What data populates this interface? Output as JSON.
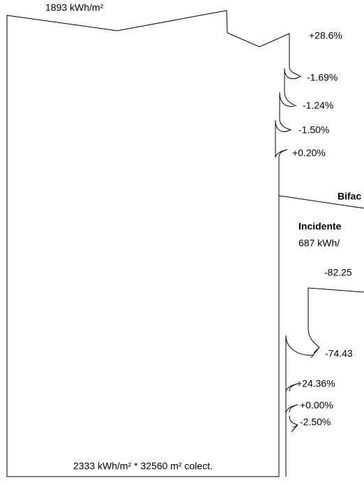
{
  "diagram": {
    "top_label": "1893 kWh/m²",
    "steps": [
      "+28.6%",
      "-1.69%",
      "-1.24%",
      "-1.50%",
      "+0.20%"
    ],
    "bifacial_label": "Bifac",
    "incident_title": "Incidente",
    "incident_value": "687 kWh/",
    "rear_steps": [
      "-82.25",
      "-74.43",
      "+24.36%",
      "+0.00%",
      "-2.50%"
    ],
    "bottom_label": "2333 kWh/m² * 32560 m² colect."
  }
}
